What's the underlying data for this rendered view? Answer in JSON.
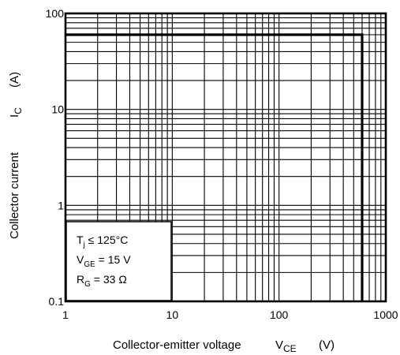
{
  "chart_data": {
    "type": "line",
    "title": "",
    "x_scale": "log",
    "y_scale": "log",
    "xlim": [
      1,
      1000
    ],
    "ylim": [
      0.1,
      100
    ],
    "grid": true,
    "x_ticks": [
      {
        "value": 1,
        "label": "1"
      },
      {
        "value": 10,
        "label": "10"
      },
      {
        "value": 100,
        "label": "100"
      },
      {
        "value": 1000,
        "label": "1000"
      }
    ],
    "y_ticks": [
      {
        "value": 0.1,
        "label": "0.1"
      },
      {
        "value": 1,
        "label": "1"
      },
      {
        "value": 10,
        "label": "10"
      },
      {
        "value": 100,
        "label": "100"
      }
    ],
    "xlabel": {
      "text": "Collector-emitter voltage",
      "symbol": "V",
      "subscript": "CE",
      "unit": "(V)"
    },
    "ylabel": {
      "text": "Collector current",
      "symbol": "I",
      "subscript": "C",
      "unit": "(A)"
    },
    "series": [
      {
        "x": [
          1,
          600,
          600
        ],
        "y": [
          60,
          60,
          0.1
        ]
      }
    ],
    "annotation": {
      "lines": [
        {
          "symbol": "T",
          "subscript": "j",
          "text": " ≤ 125°C"
        },
        {
          "symbol": "V",
          "subscript": "GE",
          "text": " = 15 V"
        },
        {
          "symbol": "R",
          "subscript": "G",
          "text": " = 33 Ω"
        }
      ]
    }
  }
}
